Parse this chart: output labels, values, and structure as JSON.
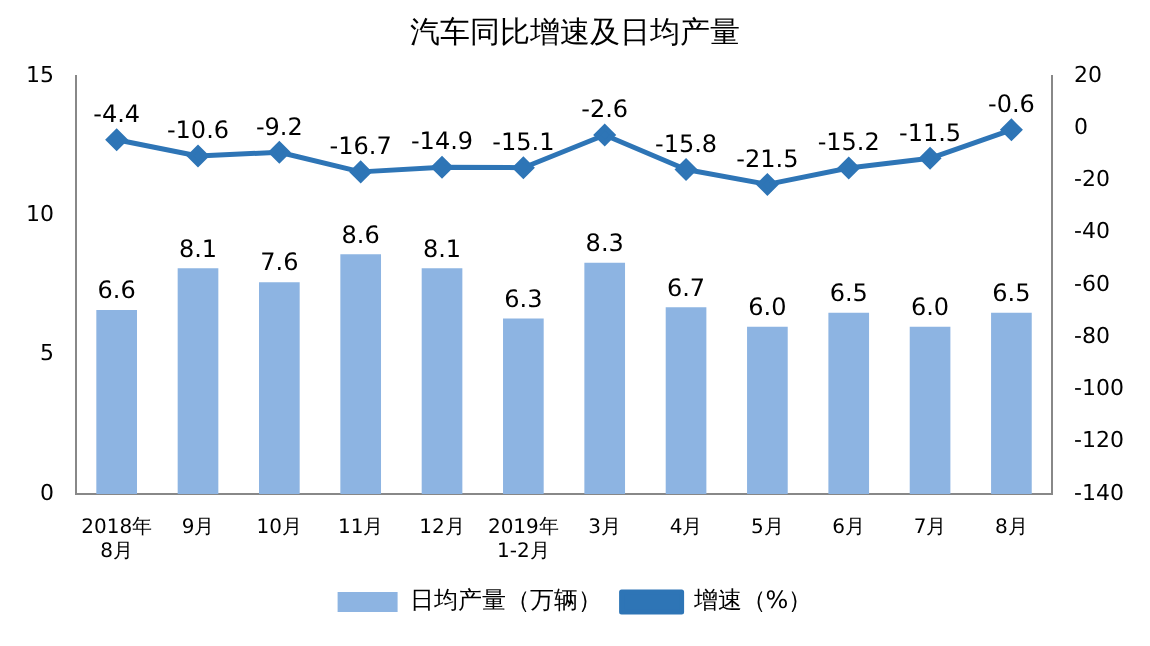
{
  "chart_data": {
    "type": "bar",
    "title": "汽车同比增速及日均产量",
    "categories": [
      "2018年\n8月",
      "9月",
      "10月",
      "11月",
      "12月",
      "2019年\n1-2月",
      "3月",
      "4月",
      "5月",
      "6月",
      "7月",
      "8月"
    ],
    "series": [
      {
        "name": "日均产量（万辆）",
        "color": "#8db4e2",
        "values": [
          6.6,
          8.1,
          7.6,
          8.6,
          8.1,
          6.3,
          8.3,
          6.7,
          6.0,
          6.5,
          6.0,
          6.5
        ],
        "value_labels": [
          "6.6",
          "8.1",
          "7.6",
          "8.6",
          "8.1",
          "6.3",
          "8.3",
          "6.7",
          "6.0",
          "6.5",
          "6.0",
          "6.5"
        ]
      },
      {
        "name": "增速（%）",
        "type": "line",
        "axis": "y2",
        "color": "#2e75b6",
        "marker": "diamond",
        "values": [
          -4.4,
          -10.6,
          -9.2,
          -16.7,
          -14.9,
          -15.1,
          -2.6,
          -15.8,
          -21.5,
          -15.2,
          -11.5,
          -0.6
        ],
        "value_labels": [
          "-4.4",
          "-10.6",
          "-9.2",
          "-16.7",
          "-14.9",
          "-15.1",
          "-2.6",
          "-15.8",
          "-21.5",
          "-15.2",
          "-11.5",
          "-0.6"
        ]
      }
    ],
    "ylim": [
      0,
      15
    ],
    "yticks": [
      0,
      5,
      10,
      15
    ],
    "y2lim": [
      -140,
      20
    ],
    "y2ticks": [
      -140,
      -120,
      -100,
      -80,
      -60,
      -40,
      -20,
      0,
      20
    ],
    "grid": false,
    "legend": "bottom"
  }
}
